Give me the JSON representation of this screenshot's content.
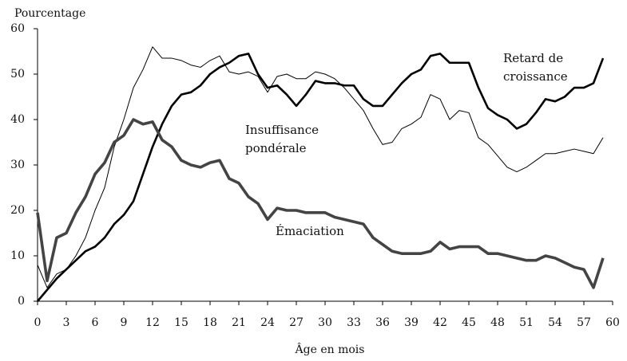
{
  "chart_data": {
    "type": "line",
    "y_label": "Pourcentage",
    "x_label": "Âge en mois",
    "x": [
      0,
      1,
      2,
      3,
      4,
      5,
      6,
      7,
      8,
      9,
      10,
      11,
      12,
      13,
      14,
      15,
      16,
      17,
      18,
      19,
      20,
      21,
      22,
      23,
      24,
      25,
      26,
      27,
      28,
      29,
      30,
      31,
      32,
      33,
      34,
      35,
      36,
      37,
      38,
      39,
      40,
      41,
      42,
      43,
      44,
      45,
      46,
      47,
      48,
      49,
      50,
      51,
      52,
      53,
      54,
      55,
      56,
      57,
      58,
      59
    ],
    "xlim": [
      0,
      60
    ],
    "xticks": [
      0,
      3,
      6,
      9,
      12,
      15,
      18,
      21,
      24,
      27,
      30,
      33,
      36,
      39,
      42,
      45,
      48,
      51,
      54,
      57,
      60
    ],
    "ylim": [
      0,
      60
    ],
    "yticks": [
      0,
      10,
      20,
      30,
      40,
      50,
      60
    ],
    "grid": false,
    "series": [
      {
        "name": "Retard de croissance",
        "color": "#000000",
        "values": [
          0,
          2.5,
          5,
          7,
          9,
          11,
          12,
          14,
          17,
          19,
          22,
          28,
          34,
          39,
          43,
          45.5,
          46,
          47.5,
          50,
          51.5,
          52.5,
          54,
          54.5,
          50,
          47,
          47.5,
          45.5,
          43,
          45.5,
          48.5,
          48,
          48,
          47.5,
          47.5,
          44.5,
          43,
          43,
          45.5,
          48,
          50,
          51,
          54,
          54.5,
          52.5,
          52.5,
          52.5,
          47,
          42.5,
          41,
          40,
          38,
          39,
          41.5,
          44.5,
          44,
          45,
          47,
          47,
          48,
          53.5
        ]
      },
      {
        "name": "Insuffisance pondérale",
        "color": "#000000",
        "values": [
          8,
          3,
          6,
          7,
          10,
          14,
          20,
          25,
          34,
          40,
          47,
          51,
          56,
          53.5,
          53.5,
          53,
          52,
          51.5,
          53,
          54,
          50.5,
          50,
          50.5,
          49.5,
          46,
          49.5,
          50,
          49,
          49,
          50.5,
          50,
          49,
          47,
          44.5,
          42,
          38,
          34.5,
          35,
          38,
          39,
          40.5,
          45.5,
          44.5,
          40,
          42,
          41.5,
          36,
          34.5,
          32,
          29.5,
          28.5,
          29.5,
          31,
          32.5,
          32.5,
          33,
          33.5,
          33,
          32.5,
          36
        ]
      },
      {
        "name": "Émaciation",
        "color": "#444444",
        "values": [
          19.5,
          4.5,
          14,
          15,
          19.5,
          23,
          28,
          30.5,
          35,
          36.5,
          40,
          39,
          39.5,
          35.5,
          34,
          31,
          30,
          29.5,
          30.5,
          31,
          27,
          26,
          23,
          21.5,
          18,
          20.5,
          20,
          20,
          19.5,
          19.5,
          19.5,
          18.5,
          18,
          17.5,
          17,
          14,
          12.5,
          11,
          10.5,
          10.5,
          10.5,
          11,
          13,
          11.5,
          12,
          12,
          12,
          10.5,
          10.5,
          10,
          9.5,
          9,
          9,
          10,
          9.5,
          8.5,
          7.5,
          7,
          3,
          9.5
        ]
      }
    ]
  }
}
